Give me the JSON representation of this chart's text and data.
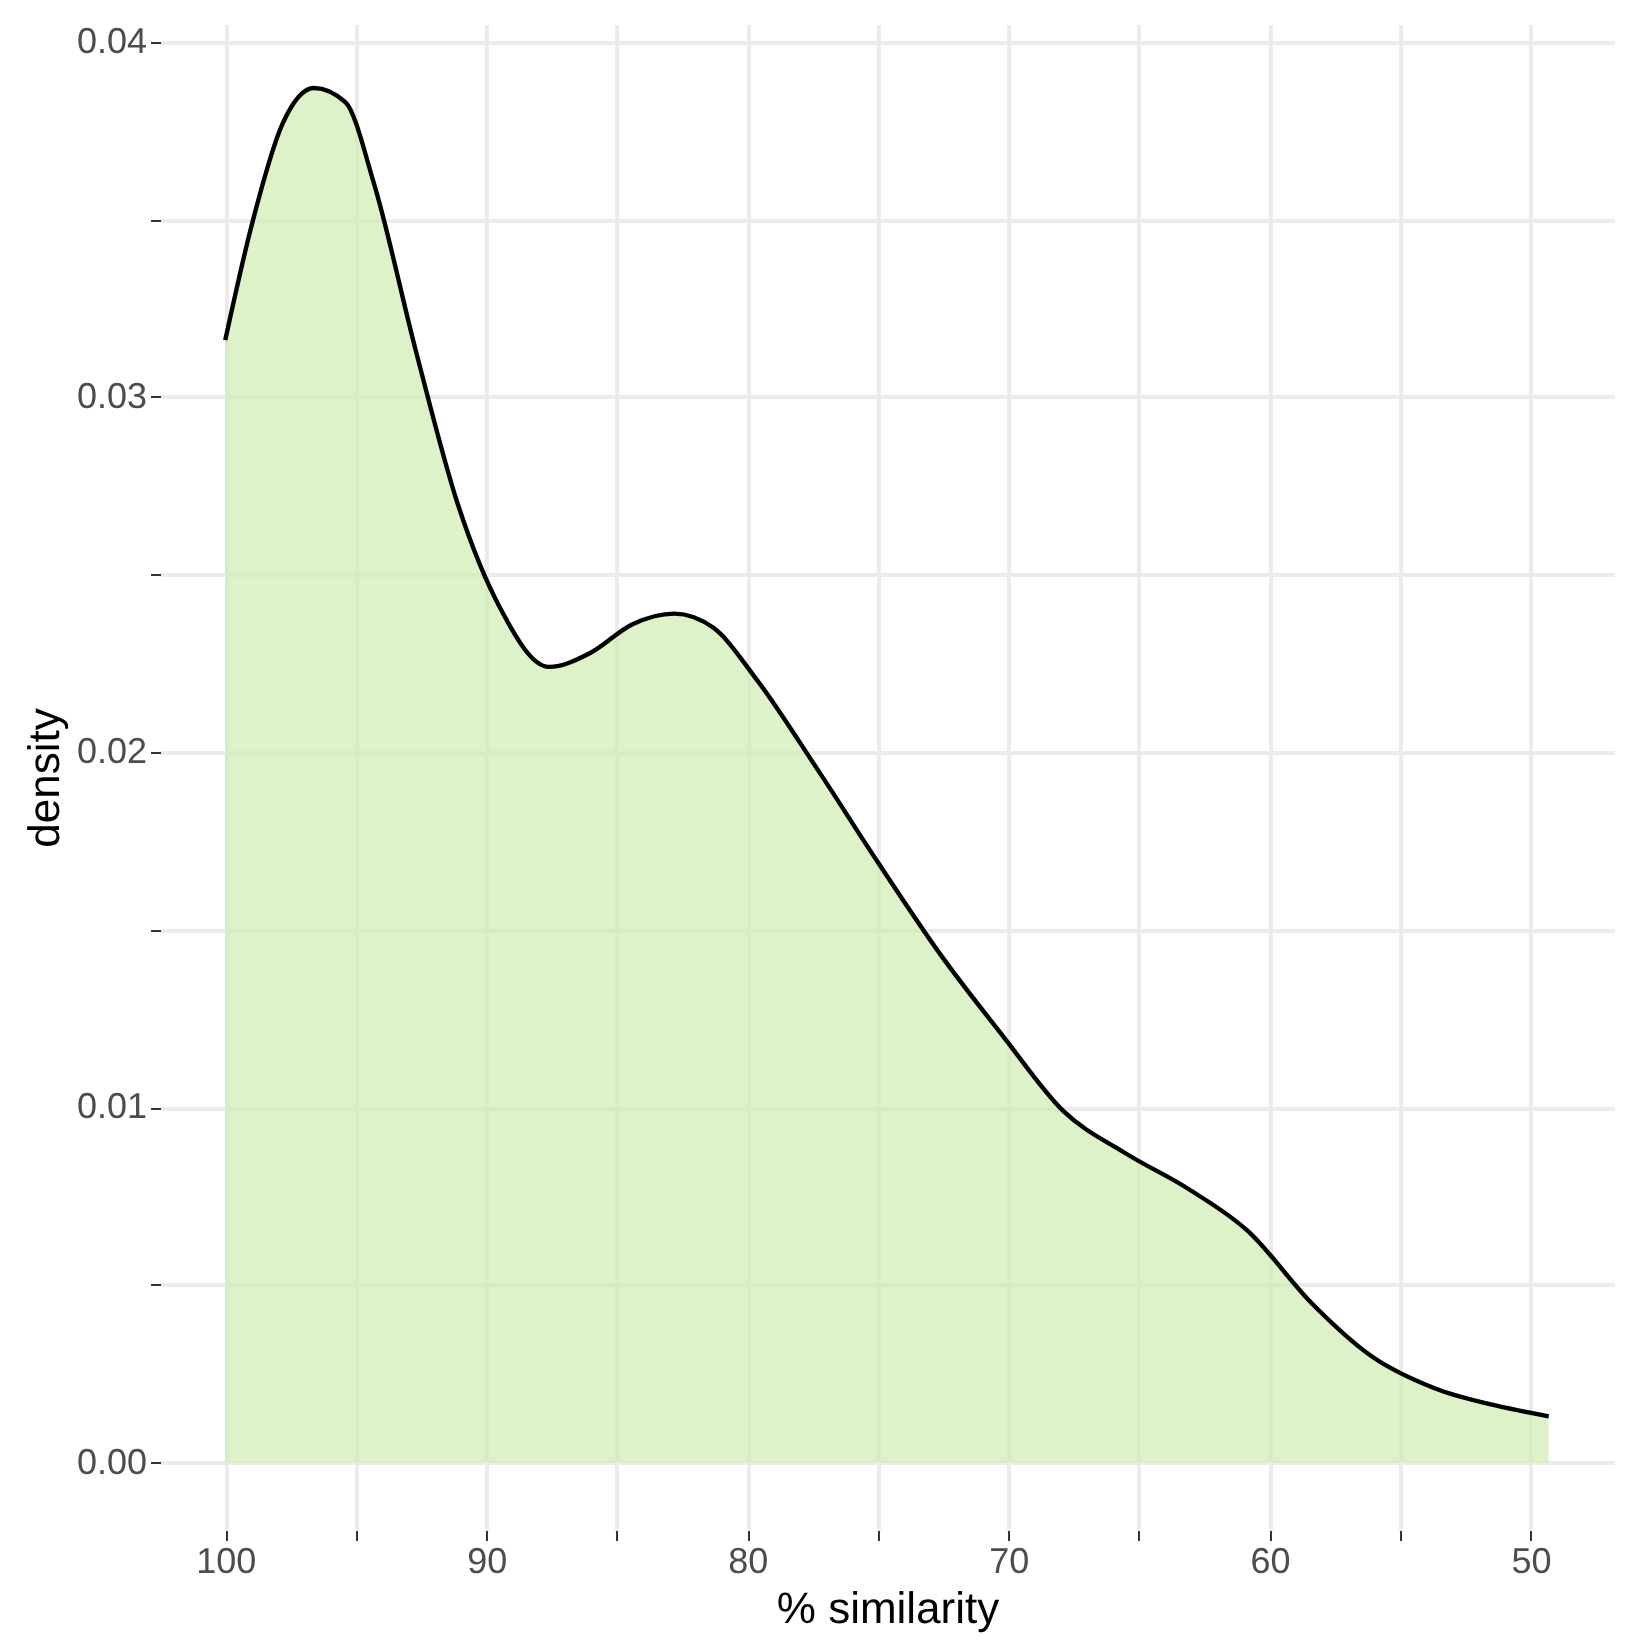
{
  "chart_data": {
    "type": "area",
    "xlabel": "% similarity",
    "ylabel": "density",
    "x": [
      100,
      99,
      97.8,
      96.6,
      95.4,
      94.3,
      92.7,
      91.1,
      89.5,
      87.6,
      86,
      84.4,
      82.8,
      81.3,
      79.7,
      77.3,
      75,
      72.6,
      70.2,
      67.9,
      65.5,
      63.1,
      60.8,
      58.4,
      56.1,
      53.7,
      51.3,
      49.3
    ],
    "series": [
      {
        "color": "#cfedb0",
        "values": [
          0.0316,
          0.0348,
          0.0377,
          0.0387,
          0.0383,
          0.036,
          0.0313,
          0.027,
          0.0241,
          0.0224,
          0.0228,
          0.0236,
          0.0239,
          0.0235,
          0.0221,
          0.0195,
          0.0169,
          0.0143,
          0.012,
          0.0099,
          0.0087,
          0.0077,
          0.0065,
          0.0045,
          0.003,
          0.0021,
          0.0016,
          0.0013
        ]
      }
    ],
    "xlim": [
      102.5,
      46.8
    ],
    "xticks": [
      100,
      {
        "value": 95,
        "label": null
      },
      90,
      {
        "value": 85,
        "label": null
      },
      80,
      {
        "value": 75,
        "label": null
      },
      70,
      {
        "value": 65,
        "label": null
      },
      60,
      {
        "value": 55,
        "label": null
      },
      50
    ],
    "ylim": [
      -0.0019,
      0.0405
    ],
    "yticks": [
      {
        "value": 0,
        "label": "0.00"
      },
      {
        "value": 0.005,
        "label": null
      },
      {
        "value": 0.01,
        "label": "0.01"
      },
      {
        "value": 0.015,
        "label": null
      },
      {
        "value": 0.02,
        "label": "0.02"
      },
      {
        "value": 0.025,
        "label": null
      },
      {
        "value": 0.03,
        "label": "0.03"
      },
      {
        "value": 0.035,
        "label": null
      },
      {
        "value": 0.04,
        "label": "0.04"
      }
    ],
    "grid": true
  }
}
